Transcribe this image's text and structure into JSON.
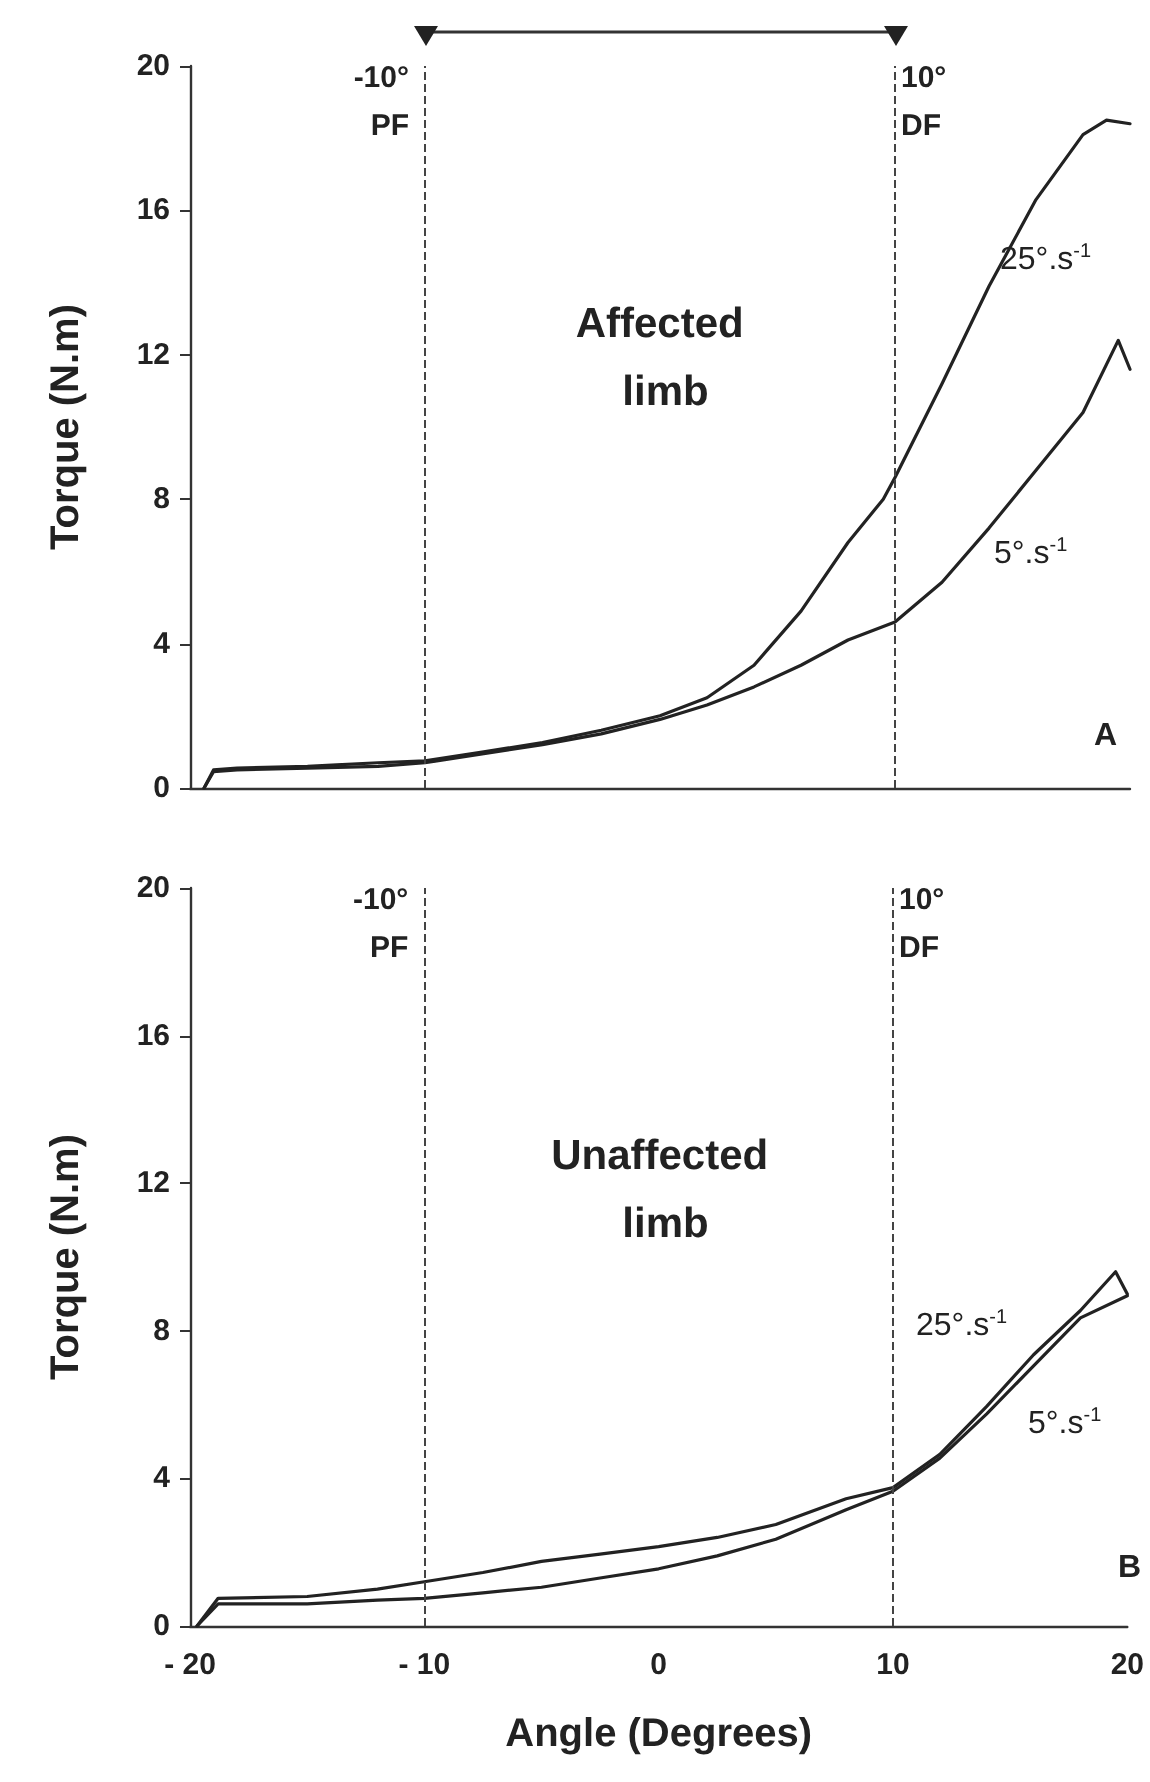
{
  "chart_data": [
    {
      "type": "line",
      "title": "Affected limb",
      "ylabel": "Torque (N.m)",
      "tick_labels": "y",
      "xlim": [
        -20,
        20
      ],
      "xticks": [
        -20,
        -10,
        0,
        10,
        20
      ],
      "ylim": [
        0,
        20
      ],
      "yticks": [
        0,
        4,
        8,
        12,
        16,
        20
      ],
      "grid": false,
      "marker": "none",
      "line_style": "solid",
      "series": [
        {
          "name": "25°.s$^{-1}$",
          "color": "#222222",
          "x": [
            -19.4,
            -19,
            -18,
            -15,
            -12,
            -10,
            -7.5,
            -5,
            -2.5,
            0,
            2,
            4,
            6,
            8,
            9.5,
            10,
            12,
            14,
            16,
            18,
            19,
            20
          ],
          "values": [
            0,
            0.5,
            0.55,
            0.6,
            0.7,
            0.75,
            1.0,
            1.26,
            1.6,
            2.0,
            2.5,
            3.4,
            4.9,
            6.8,
            8.0,
            8.6,
            11.2,
            13.9,
            16.3,
            18.1,
            18.5,
            18.4
          ]
        },
        {
          "name": "5°.s$^{-1}$",
          "color": "#222222",
          "x": [
            -19.4,
            -19,
            -18,
            -15,
            -12,
            -10,
            -7.5,
            -5,
            -2.5,
            0,
            2,
            4,
            6,
            8,
            10,
            12,
            14,
            16,
            18,
            19.5,
            20
          ],
          "values": [
            0,
            0.45,
            0.5,
            0.55,
            0.6,
            0.7,
            0.95,
            1.2,
            1.5,
            1.9,
            2.3,
            2.8,
            3.4,
            4.1,
            4.6,
            5.7,
            7.2,
            8.8,
            10.4,
            12.4,
            11.6
          ]
        }
      ],
      "ref_lines": [
        {
          "axis": "x",
          "value": -10,
          "label": "-10°\nPF",
          "line_style": "dashed"
        },
        {
          "axis": "x",
          "value": 10,
          "label": "10°\nDF",
          "line_style": "dashed"
        }
      ],
      "annotations": [
        "A"
      ]
    },
    {
      "type": "line",
      "title": "Unaffected limb",
      "xlabel": "Angle (Degrees)",
      "ylabel": "Torque (N.m)",
      "xlim": [
        -20,
        20
      ],
      "xticks": [
        {
          "value": -20,
          "label": "- 20"
        },
        {
          "value": -10,
          "label": "- 10"
        },
        0,
        10,
        20
      ],
      "ylim": [
        0,
        20
      ],
      "yticks": [
        0,
        4,
        8,
        12,
        16,
        20
      ],
      "grid": false,
      "marker": "none",
      "line_style": "solid",
      "series": [
        {
          "name": "25°.s$^{-1}$",
          "color": "#222222",
          "x": [
            -19.7,
            -18.8,
            -15,
            -12,
            -10,
            -7.5,
            -5,
            -2.5,
            0,
            2.5,
            5,
            8,
            10,
            12,
            14,
            16,
            18,
            19.5,
            20
          ],
          "values": [
            0,
            0.75,
            0.8,
            1.0,
            1.2,
            1.45,
            1.75,
            1.95,
            2.15,
            2.4,
            2.75,
            3.45,
            3.75,
            4.65,
            5.95,
            7.35,
            8.55,
            9.6,
            9.0
          ]
        },
        {
          "name": "5°.s$^{-1}$",
          "color": "#222222",
          "x": [
            -19.7,
            -18.8,
            -15,
            -12,
            -10,
            -7.5,
            -5,
            -2.5,
            0,
            2.5,
            5,
            8,
            10,
            12,
            14,
            16,
            18,
            20
          ],
          "values": [
            0,
            0.6,
            0.6,
            0.7,
            0.75,
            0.9,
            1.05,
            1.3,
            1.55,
            1.9,
            2.35,
            3.15,
            3.65,
            4.55,
            5.75,
            7.05,
            8.35,
            8.95
          ]
        }
      ],
      "ref_lines": [
        {
          "axis": "x",
          "value": -10,
          "label": "-10°\nPF",
          "line_style": "dashed"
        },
        {
          "axis": "x",
          "value": 10,
          "label": "10°\nDF",
          "line_style": "dashed"
        }
      ],
      "annotations": [
        "B"
      ]
    }
  ]
}
